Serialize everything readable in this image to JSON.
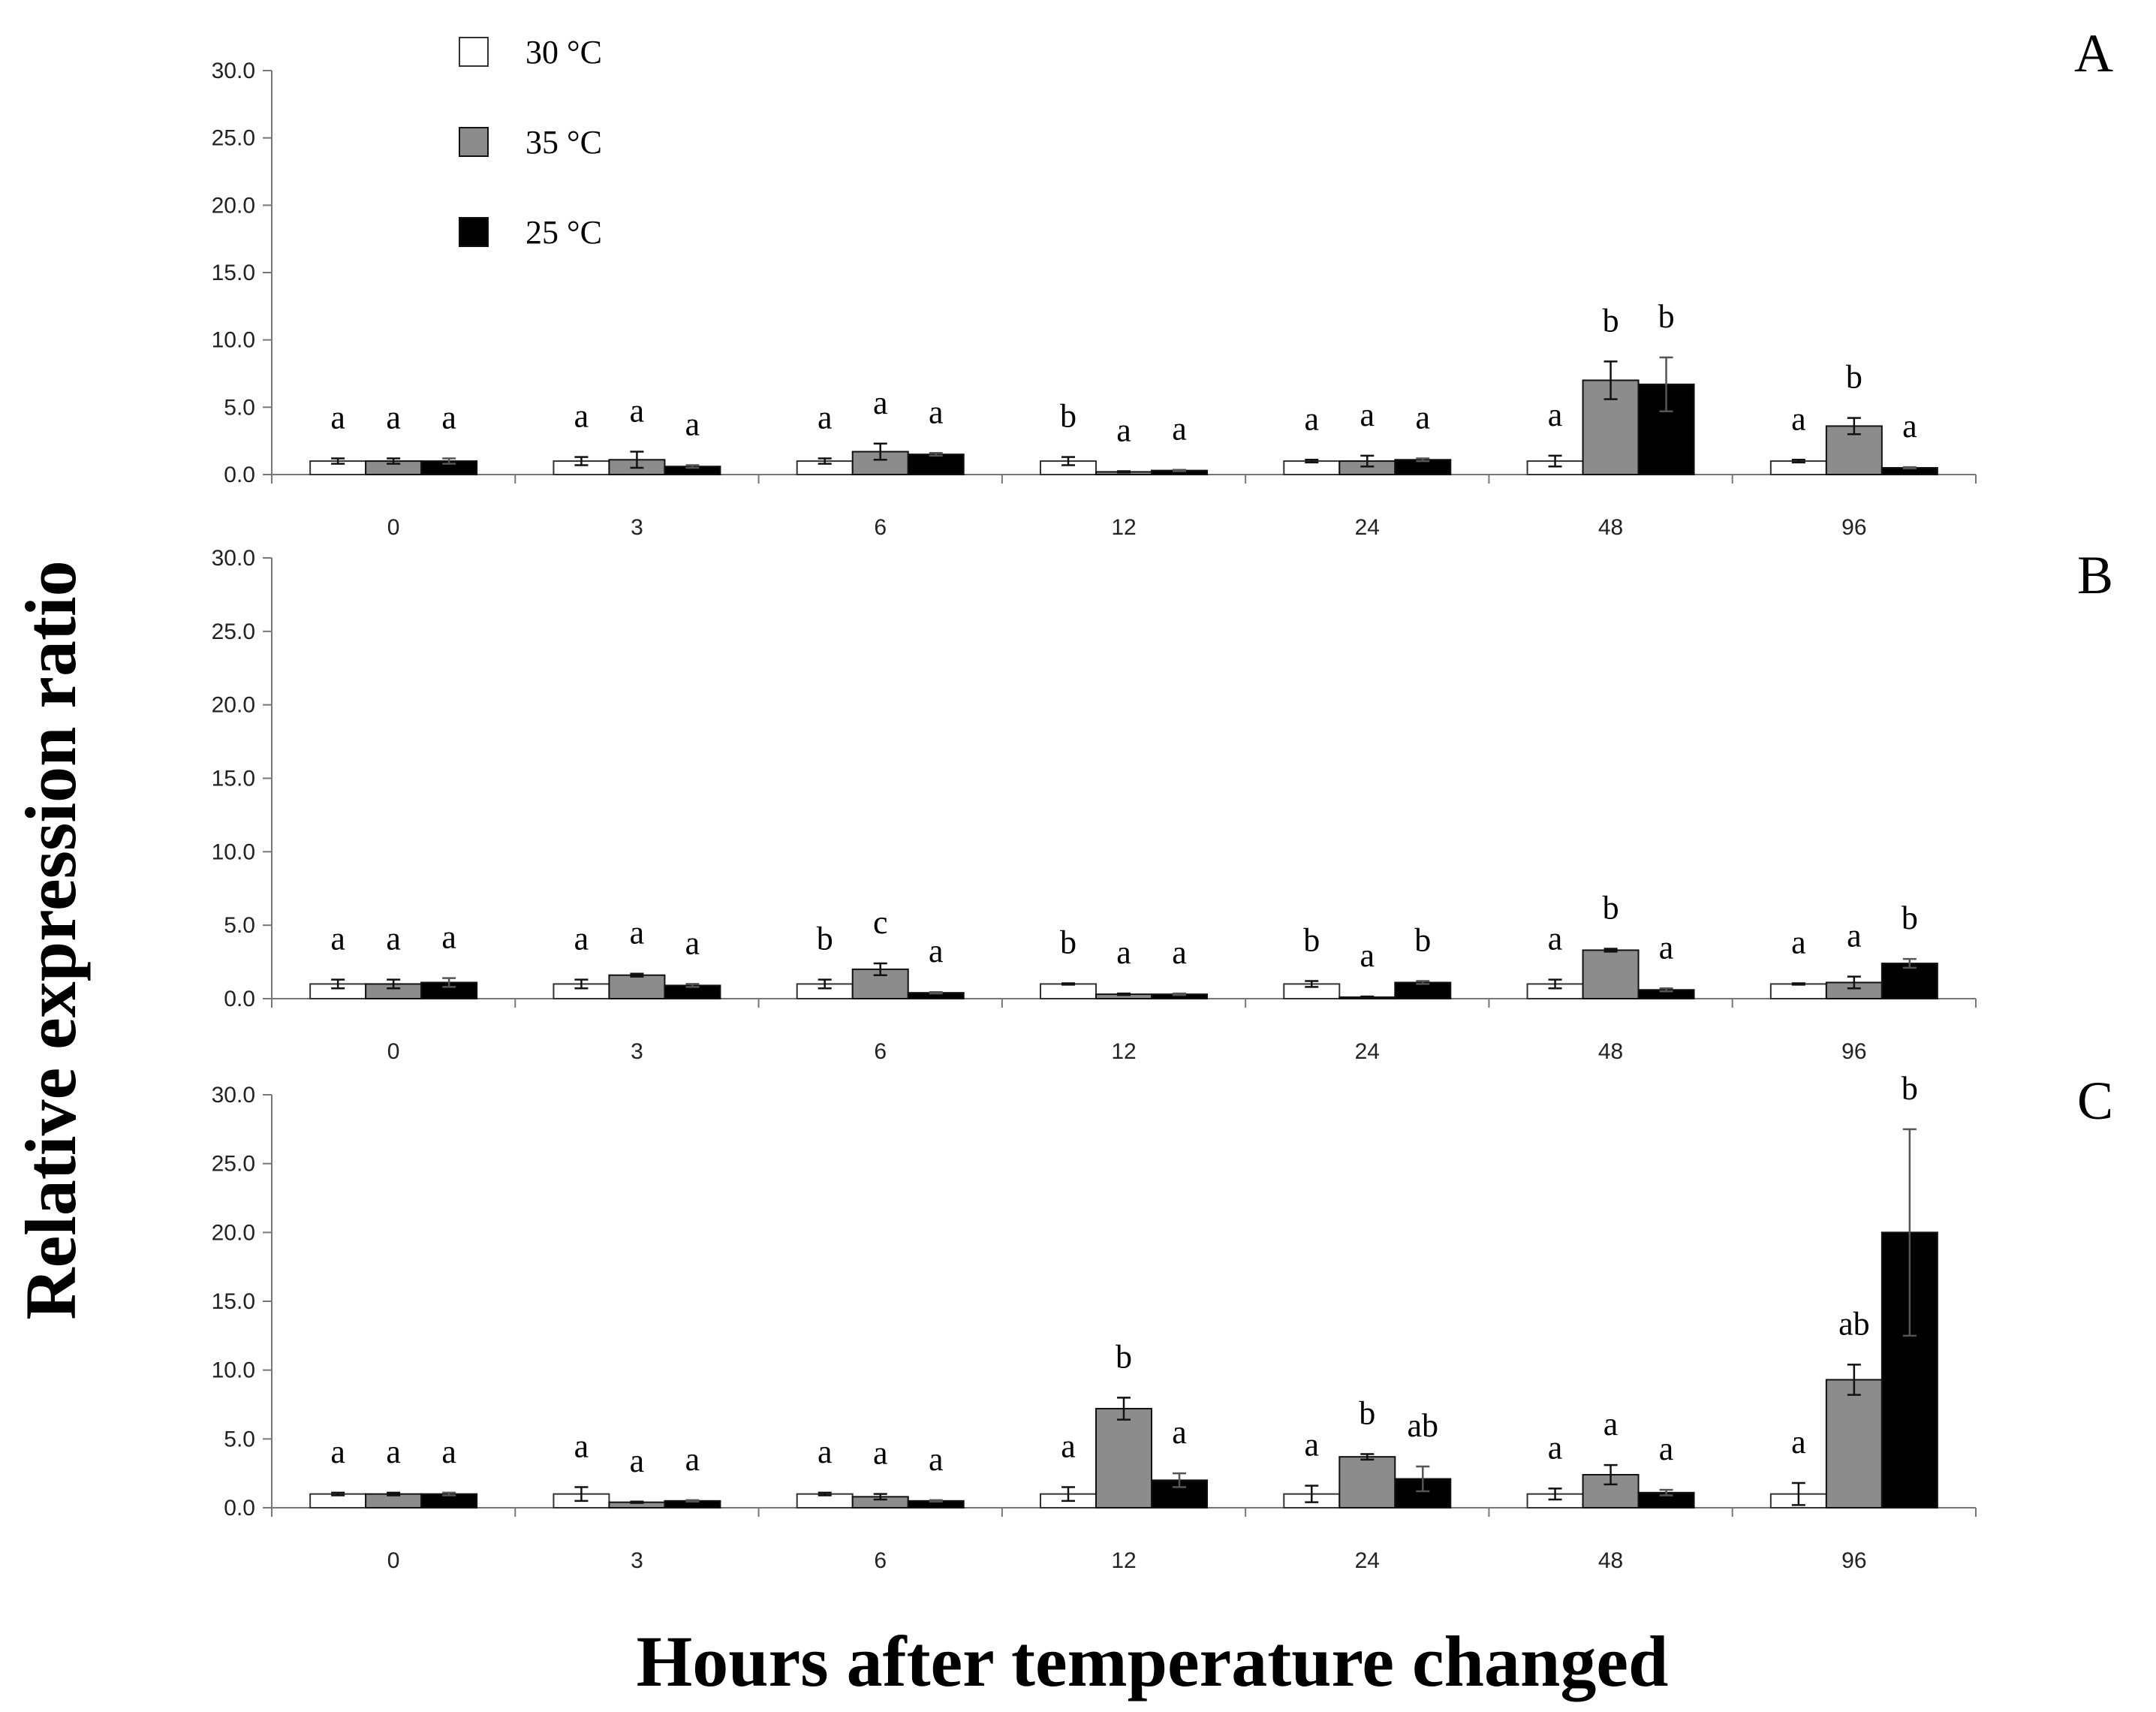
{
  "chart_data": {
    "type": "bar",
    "ylabel": "Relative expression ratio",
    "xlabel": "Hours after temperature changed",
    "ylim": [
      0,
      30
    ],
    "yticks": [
      "0.0",
      "5.0",
      "10.0",
      "15.0",
      "20.0",
      "25.0",
      "30.0"
    ],
    "categories": [
      "0",
      "3",
      "6",
      "12",
      "24",
      "48",
      "96"
    ],
    "legend": [
      {
        "name": "30 °C",
        "color": "#ffffff"
      },
      {
        "name": "35 °C",
        "color": "#8c8c8c"
      },
      {
        "name": "25 °C",
        "color": "#000000"
      }
    ],
    "panels": [
      {
        "label": "A",
        "series": [
          {
            "name": "30 °C",
            "values": [
              1.0,
              1.0,
              1.0,
              1.0,
              1.0,
              1.0,
              1.0
            ],
            "errors": [
              0.2,
              0.3,
              0.2,
              0.3,
              0.1,
              0.4,
              0.1
            ],
            "letters": [
              "a",
              "a",
              "a",
              "b",
              "a",
              "a",
              "a"
            ]
          },
          {
            "name": "35 °C",
            "values": [
              1.0,
              1.1,
              1.7,
              0.2,
              1.0,
              7.0,
              3.6
            ],
            "errors": [
              0.2,
              0.6,
              0.6,
              0.05,
              0.4,
              1.4,
              0.6
            ],
            "letters": [
              "a",
              "a",
              "a",
              "a",
              "a",
              "b",
              "b"
            ]
          },
          {
            "name": "25 °C",
            "values": [
              1.0,
              0.6,
              1.5,
              0.3,
              1.1,
              6.7,
              0.5
            ],
            "errors": [
              0.2,
              0.1,
              0.1,
              0.05,
              0.1,
              2.0,
              0.05
            ],
            "letters": [
              "a",
              "a",
              "a",
              "a",
              "a",
              "b",
              "a"
            ]
          }
        ]
      },
      {
        "label": "B",
        "series": [
          {
            "name": "30 °C",
            "values": [
              1.0,
              1.0,
              1.0,
              1.0,
              1.0,
              1.0,
              1.0
            ],
            "errors": [
              0.3,
              0.3,
              0.3,
              0.05,
              0.2,
              0.3,
              0.05
            ],
            "letters": [
              "a",
              "a",
              "b",
              "b",
              "b",
              "a",
              "a"
            ]
          },
          {
            "name": "35 °C",
            "values": [
              1.0,
              1.6,
              2.0,
              0.3,
              0.1,
              3.3,
              1.1
            ],
            "errors": [
              0.3,
              0.1,
              0.4,
              0.05,
              0.05,
              0.1,
              0.4
            ],
            "letters": [
              "a",
              "a",
              "c",
              "a",
              "a",
              "b",
              "a"
            ]
          },
          {
            "name": "25 °C",
            "values": [
              1.1,
              0.9,
              0.4,
              0.3,
              1.1,
              0.6,
              2.4
            ],
            "errors": [
              0.3,
              0.1,
              0.05,
              0.05,
              0.1,
              0.1,
              0.3
            ],
            "letters": [
              "a",
              "a",
              "a",
              "a",
              "b",
              "a",
              "b"
            ]
          }
        ]
      },
      {
        "label": "C",
        "series": [
          {
            "name": "30 °C",
            "values": [
              1.0,
              1.0,
              1.0,
              1.0,
              1.0,
              1.0,
              1.0
            ],
            "errors": [
              0.1,
              0.5,
              0.1,
              0.5,
              0.6,
              0.4,
              0.8
            ],
            "letters": [
              "a",
              "a",
              "a",
              "a",
              "a",
              "a",
              "a"
            ]
          },
          {
            "name": "35 °C",
            "values": [
              1.0,
              0.4,
              0.8,
              7.2,
              3.7,
              2.4,
              9.3
            ],
            "errors": [
              0.1,
              0.05,
              0.2,
              0.8,
              0.2,
              0.7,
              1.1
            ],
            "letters": [
              "a",
              "a",
              "a",
              "b",
              "b",
              "a",
              "ab"
            ]
          },
          {
            "name": "25 °C",
            "values": [
              1.0,
              0.5,
              0.5,
              2.0,
              2.1,
              1.1,
              20.0
            ],
            "errors": [
              0.1,
              0.05,
              0.05,
              0.5,
              0.9,
              0.2,
              7.5
            ],
            "letters": [
              "a",
              "a",
              "a",
              "a",
              "ab",
              "a",
              "b"
            ]
          }
        ]
      }
    ]
  }
}
